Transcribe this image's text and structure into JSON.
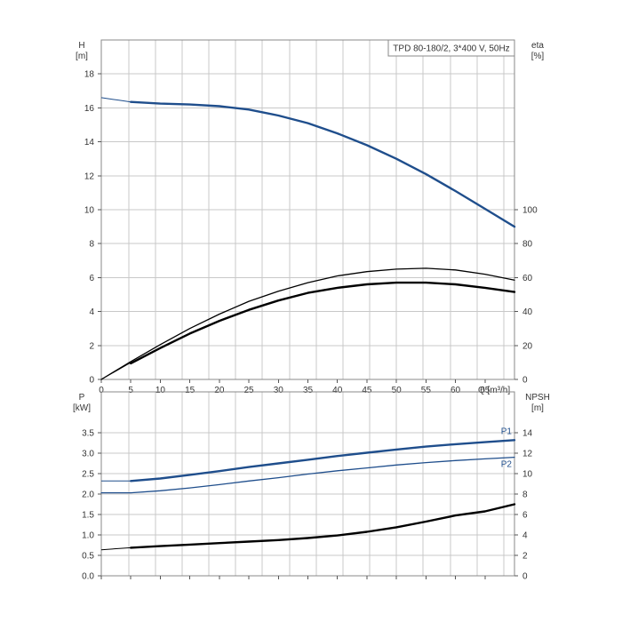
{
  "chart_data": [
    {
      "type": "line",
      "panel": "upper",
      "title": "TPD 80-180/2, 3*400 V, 50Hz",
      "x_unit": "Q [m³/h]",
      "xlim": [
        0,
        70
      ],
      "x_ticks": [
        0,
        5,
        10,
        15,
        20,
        25,
        30,
        35,
        40,
        45,
        50,
        55,
        60,
        65
      ],
      "x_tick_labels": [
        "0",
        "5",
        "10",
        "15",
        "20",
        "25",
        "30",
        "35",
        "40",
        "45",
        "50",
        "55",
        "60",
        "65"
      ],
      "y_left_label": "H",
      "y_left_unit": "[m]",
      "y_left_lim": [
        0,
        20
      ],
      "y_left_ticks": [
        0,
        2,
        4,
        6,
        8,
        10,
        12,
        14,
        16,
        18
      ],
      "y_right_label": "eta",
      "y_right_unit": "[%]",
      "y_right_lim": [
        0,
        200
      ],
      "y_right_ticks": [
        0,
        20,
        40,
        60,
        80,
        100
      ],
      "grid": true,
      "series": [
        {
          "label_key": "H",
          "axis": "left",
          "color": "#1f4e8c",
          "thin_extension": {
            "x": [
              0,
              1,
              2,
              3,
              4,
              5
            ],
            "y": [
              16.6,
              16.55,
              16.5,
              16.45,
              16.4,
              16.35
            ]
          },
          "x": [
            5,
            10,
            15,
            20,
            25,
            30,
            35,
            40,
            45,
            50,
            55,
            60,
            65,
            70
          ],
          "y": [
            16.35,
            16.25,
            16.2,
            16.1,
            15.9,
            15.55,
            15.1,
            14.5,
            13.8,
            13.0,
            12.1,
            11.1,
            10.05,
            9.0
          ]
        },
        {
          "label_key": "eta",
          "axis": "right",
          "color": "#000000",
          "thin_extension": {
            "x": [
              0,
              5
            ],
            "y": [
              0,
              10
            ]
          },
          "x": [
            5,
            10,
            15,
            20,
            25,
            30,
            35,
            40,
            45,
            50,
            55,
            60,
            65,
            70
          ],
          "y": [
            9.5,
            18.5,
            27,
            34.5,
            41,
            46.5,
            51,
            54,
            56,
            57,
            57,
            56,
            54,
            51.5
          ]
        },
        {
          "label_key": "eta",
          "axis": "right",
          "color": "#000000",
          "x": [
            0,
            5,
            10,
            15,
            20,
            25,
            30,
            35,
            40,
            45,
            50,
            55,
            60,
            65,
            70
          ],
          "y": [
            0,
            10.5,
            20.5,
            30,
            38.5,
            46,
            52,
            57,
            61,
            63.5,
            65,
            65.5,
            64.5,
            62,
            58.5
          ]
        }
      ]
    },
    {
      "type": "line",
      "panel": "lower",
      "xlim": [
        0,
        70
      ],
      "x_ticks": [
        0,
        5,
        10,
        15,
        20,
        25,
        30,
        35,
        40,
        45,
        50,
        55,
        60,
        65
      ],
      "y_left_label": "P",
      "y_left_unit": "[kW]",
      "y_left_lim": [
        0,
        4.5
      ],
      "y_left_ticks": [
        0,
        0.5,
        1.0,
        1.5,
        2.0,
        2.5,
        3.0,
        3.5
      ],
      "y_left_tick_labels": [
        "0.0",
        "0.5",
        "1.0",
        "1.5",
        "2.0",
        "2.5",
        "3.0",
        "3.5"
      ],
      "y_right_label": "NPSH",
      "y_right_unit": "[m]",
      "y_right_lim": [
        0,
        18
      ],
      "y_right_ticks": [
        0,
        2,
        4,
        6,
        8,
        10,
        12,
        14
      ],
      "grid": true,
      "series": [
        {
          "name": "P1",
          "axis": "left",
          "color": "#1f4e8c",
          "thin_extension": {
            "x": [
              0,
              5
            ],
            "y": [
              2.32,
              2.32
            ]
          },
          "x": [
            5,
            10,
            15,
            20,
            25,
            30,
            35,
            40,
            45,
            50,
            55,
            60,
            65,
            70
          ],
          "y": [
            2.32,
            2.38,
            2.47,
            2.56,
            2.66,
            2.75,
            2.84,
            2.93,
            3.01,
            3.09,
            3.16,
            3.22,
            3.27,
            3.32
          ]
        },
        {
          "name": "P2",
          "axis": "left",
          "color": "#1f4e8c",
          "x": [
            0,
            5,
            10,
            15,
            20,
            25,
            30,
            35,
            40,
            45,
            50,
            55,
            60,
            65,
            70
          ],
          "y": [
            2.03,
            2.03,
            2.08,
            2.15,
            2.23,
            2.32,
            2.4,
            2.49,
            2.57,
            2.64,
            2.71,
            2.77,
            2.82,
            2.86,
            2.9
          ]
        },
        {
          "label_key": "NPSH",
          "axis": "right",
          "color": "#000000",
          "thin_extension": {
            "x": [
              0,
              5
            ],
            "y": [
              2.55,
              2.75
            ]
          },
          "x": [
            5,
            10,
            15,
            20,
            25,
            30,
            35,
            40,
            45,
            50,
            55,
            60,
            65,
            70
          ],
          "y": [
            2.75,
            2.9,
            3.05,
            3.2,
            3.35,
            3.5,
            3.7,
            3.95,
            4.3,
            4.75,
            5.3,
            5.9,
            6.3,
            7.0
          ]
        }
      ]
    }
  ]
}
